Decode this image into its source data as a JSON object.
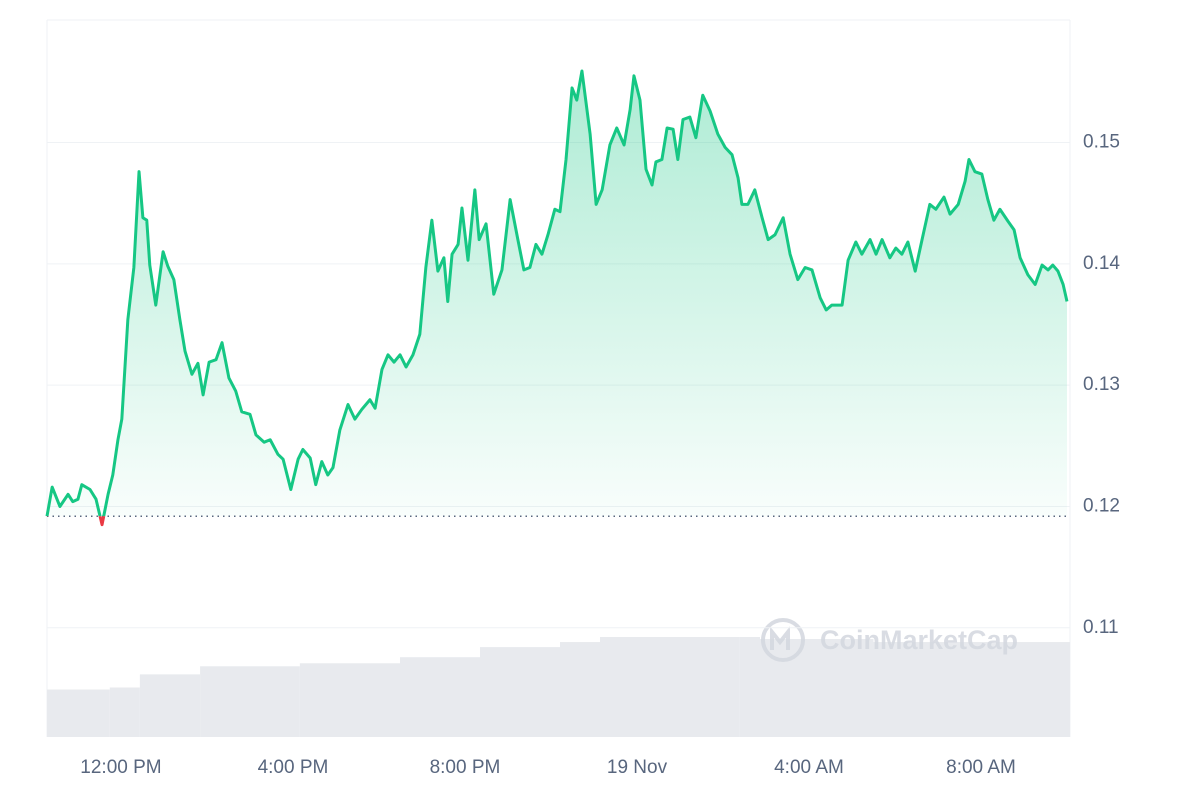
{
  "chart_data": {
    "type": "line",
    "series": [
      {
        "color": "#16c784",
        "below_color": "#ea3943",
        "x": [
          10.28,
          10.4,
          10.58,
          10.77,
          10.88,
          11.0,
          11.09,
          11.28,
          11.42,
          11.56,
          11.7,
          11.81,
          11.93,
          12.02,
          12.16,
          12.3,
          12.42,
          12.51,
          12.6,
          12.67,
          12.81,
          12.98,
          13.09,
          13.23,
          13.37,
          13.49,
          13.65,
          13.79,
          13.91,
          14.05,
          14.21,
          14.35,
          14.51,
          14.67,
          14.81,
          15.0,
          15.14,
          15.33,
          15.47,
          15.65,
          15.77,
          15.95,
          16.12,
          16.23,
          16.4,
          16.53,
          16.67,
          16.81,
          16.93,
          17.09,
          17.28,
          17.44,
          17.6,
          17.79,
          17.91,
          18.07,
          18.21,
          18.35,
          18.49,
          18.63,
          18.79,
          18.95,
          19.09,
          19.23,
          19.37,
          19.51,
          19.6,
          19.7,
          19.84,
          19.93,
          20.07,
          20.23,
          20.33,
          20.49,
          20.67,
          20.86,
          21.05,
          21.23,
          21.37,
          21.51,
          21.65,
          21.79,
          21.93,
          22.09,
          22.21,
          22.35,
          22.49,
          22.6,
          22.72,
          22.91,
          23.05,
          23.19,
          23.37,
          23.53,
          23.7,
          23.84,
          23.93,
          24.07,
          24.21,
          24.35,
          24.44,
          24.58,
          24.7,
          24.84,
          24.95,
          25.07,
          25.23,
          25.37,
          25.53,
          25.7,
          25.88,
          26.05,
          26.21,
          26.35,
          26.44,
          26.58,
          26.74,
          26.91,
          27.05,
          27.21,
          27.4,
          27.56,
          27.74,
          27.91,
          28.07,
          28.26,
          28.4,
          28.53,
          28.77,
          28.91,
          29.09,
          29.23,
          29.42,
          29.56,
          29.7,
          29.88,
          30.02,
          30.16,
          30.3,
          30.47,
          30.63,
          30.81,
          30.95,
          31.14,
          31.28,
          31.47,
          31.63,
          31.72,
          31.86,
          32.02,
          32.16,
          32.3,
          32.44,
          32.63,
          32.77,
          32.91,
          33.09,
          33.26,
          33.42,
          33.56,
          33.67,
          33.79,
          33.91,
          34.0
        ],
        "values": [
          0.1192,
          0.1216,
          0.12,
          0.121,
          0.1204,
          0.1206,
          0.1218,
          0.1214,
          0.1206,
          0.1185,
          0.121,
          0.1226,
          0.1255,
          0.1272,
          0.1354,
          0.1397,
          0.1476,
          0.1438,
          0.1436,
          0.1399,
          0.1366,
          0.141,
          0.1398,
          0.1387,
          0.1354,
          0.1328,
          0.1309,
          0.1318,
          0.1292,
          0.1319,
          0.1321,
          0.1335,
          0.1306,
          0.1295,
          0.1278,
          0.1276,
          0.1259,
          0.1253,
          0.1255,
          0.1243,
          0.1239,
          0.1214,
          0.1239,
          0.1247,
          0.124,
          0.1218,
          0.1237,
          0.1226,
          0.1232,
          0.1263,
          0.1284,
          0.1272,
          0.128,
          0.1288,
          0.1281,
          0.1313,
          0.1325,
          0.1319,
          0.1325,
          0.1315,
          0.1325,
          0.1342,
          0.1397,
          0.1436,
          0.1394,
          0.1405,
          0.1369,
          0.1408,
          0.1416,
          0.1446,
          0.1403,
          0.1461,
          0.142,
          0.1433,
          0.1375,
          0.1395,
          0.1453,
          0.142,
          0.1395,
          0.1397,
          0.1416,
          0.1408,
          0.1424,
          0.1445,
          0.1443,
          0.1486,
          0.1545,
          0.1535,
          0.1559,
          0.1507,
          0.1449,
          0.1461,
          0.1498,
          0.1512,
          0.1498,
          0.1527,
          0.1555,
          0.1535,
          0.1478,
          0.1465,
          0.1484,
          0.1486,
          0.1512,
          0.1511,
          0.1486,
          0.1519,
          0.1521,
          0.1504,
          0.1539,
          0.1526,
          0.1507,
          0.1496,
          0.149,
          0.1471,
          0.1449,
          0.1449,
          0.1461,
          0.1438,
          0.142,
          0.1424,
          0.1438,
          0.1408,
          0.1387,
          0.1397,
          0.1395,
          0.1372,
          0.1362,
          0.1366,
          0.1366,
          0.1403,
          0.1418,
          0.1408,
          0.142,
          0.1408,
          0.142,
          0.1405,
          0.1413,
          0.1408,
          0.1418,
          0.1394,
          0.142,
          0.1449,
          0.1445,
          0.1455,
          0.1441,
          0.1449,
          0.1468,
          0.1486,
          0.1476,
          0.1474,
          0.1453,
          0.1436,
          0.1445,
          0.1435,
          0.1428,
          0.1405,
          0.1391,
          0.1383,
          0.1399,
          0.1395,
          0.1399,
          0.1394,
          0.1383,
          0.1369
        ]
      }
    ],
    "baseline": 0.1192,
    "volume": {
      "color": "#e8eaee",
      "bins": [
        10.28,
        11.74,
        12.44,
        13.84,
        16.16,
        18.49,
        20.35,
        22.21,
        23.14,
        26.39,
        26.86,
        29.5,
        34.07
      ],
      "values": [
        47,
        49,
        62,
        70,
        73,
        79,
        89,
        94,
        99,
        99,
        97,
        94
      ]
    },
    "xlim": [
      10.28,
      34.07
    ],
    "ylim": [
      0.101,
      0.1601
    ],
    "xticks": [
      {
        "value": 12,
        "label": "12:00 PM"
      },
      {
        "value": 16,
        "label": "4:00 PM"
      },
      {
        "value": 20,
        "label": "8:00 PM"
      },
      {
        "value": 24,
        "label": "19 Nov"
      },
      {
        "value": 28,
        "label": "4:00 AM"
      },
      {
        "value": 32,
        "label": "8:00 AM"
      }
    ],
    "yticks": [
      0.11,
      0.12,
      0.13,
      0.14,
      0.15
    ],
    "grid": true,
    "watermark": "CoinMarketCap"
  }
}
